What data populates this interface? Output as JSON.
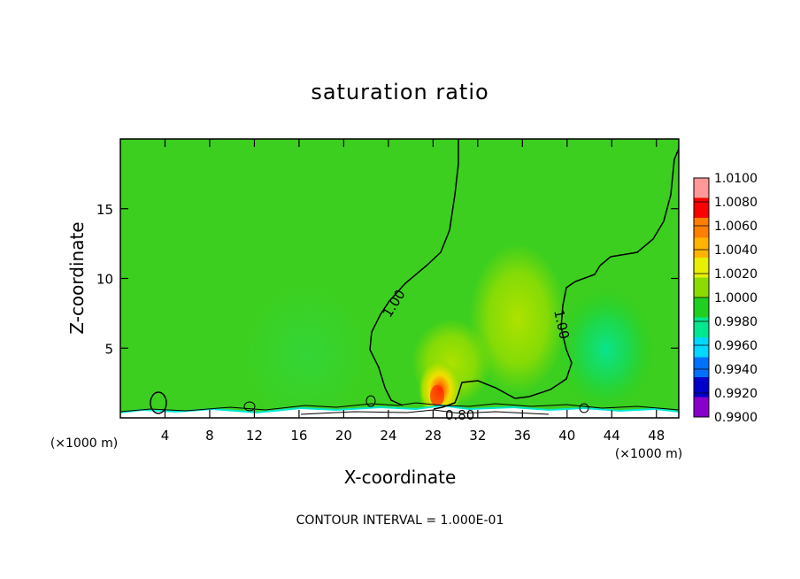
{
  "chart_data": {
    "type": "heatmap",
    "title": "saturation ratio",
    "xlabel": "X-coordinate",
    "ylabel": "Z-coordinate",
    "x_unit": "(×1000 m)",
    "x_unit_right": "(×1000 m)",
    "xlim": [
      0,
      50
    ],
    "ylim": [
      0,
      20
    ],
    "x_ticks": [
      "4",
      "8",
      "12",
      "16",
      "20",
      "24",
      "28",
      "32",
      "36",
      "40",
      "44",
      "48"
    ],
    "x_tick_values": [
      4,
      8,
      12,
      16,
      20,
      24,
      28,
      32,
      36,
      40,
      44,
      48
    ],
    "y_ticks": [
      "5",
      "10",
      "15"
    ],
    "y_tick_values": [
      5,
      10,
      15
    ],
    "footer": "CONTOUR INTERVAL = 1.000E-01",
    "colorbar": {
      "labels": [
        "1.0100",
        "1.0080",
        "1.0060",
        "1.0040",
        "1.0020",
        "1.0000",
        "0.9980",
        "0.9960",
        "0.9940",
        "0.9920",
        "0.9900"
      ],
      "colors": [
        "#ff9999",
        "#ff0000",
        "#ff7f00",
        "#ffb400",
        "#e6f000",
        "#8cdc00",
        "#20d020",
        "#00e890",
        "#00d8ff",
        "#0070ff",
        "#0000cc",
        "#8800cc"
      ]
    },
    "contour_labels": [
      {
        "text": "1.00",
        "x": 24.5,
        "z": 8.2
      },
      {
        "text": "1.00",
        "x": 39.5,
        "z": 6.7
      },
      {
        "text": "0.80",
        "x": 30.4,
        "z": 0.2
      }
    ],
    "features": [
      {
        "description": "saturation maximum near surface",
        "x": 28.5,
        "z": 1.5,
        "value": 1.008
      },
      {
        "description": "weak supersaturation region",
        "x": 35.5,
        "z": 7,
        "value": 1.002
      },
      {
        "description": "weak subsaturation region",
        "x": 43.5,
        "z": 5,
        "value": 0.998
      }
    ]
  }
}
